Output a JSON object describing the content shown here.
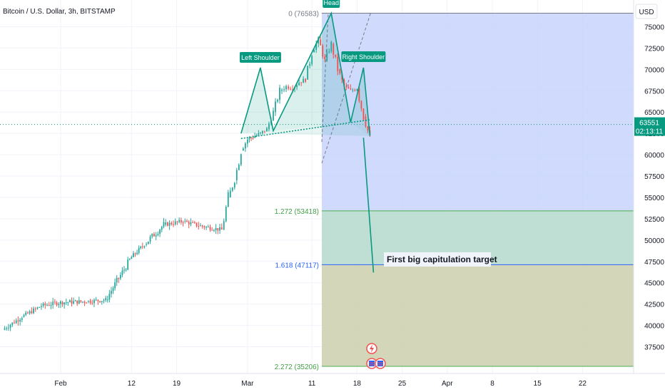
{
  "header": {
    "title": "Bitcoin / U.S. Dollar, 3h, BITSTAMP"
  },
  "price_axis": {
    "currency": "USD",
    "ticks": [
      "75000",
      "72500",
      "70000",
      "67500",
      "65000",
      "62500",
      "60000",
      "57500",
      "55000",
      "52500",
      "50000",
      "47500",
      "45000",
      "42500",
      "40000",
      "37500"
    ]
  },
  "time_axis": {
    "ticks": [
      "Feb",
      "12",
      "19",
      "Mar",
      "11",
      "18",
      "25",
      "Apr",
      "8",
      "15",
      "22"
    ]
  },
  "current_price": {
    "value": "63551",
    "countdown": "02:13:11"
  },
  "fib_levels": [
    {
      "label": "0 (76583)",
      "price": 76583
    },
    {
      "label": "1.272 (53418)",
      "price": 53418
    },
    {
      "label": "1.618 (47117)",
      "price": 47117
    },
    {
      "label": "2.272 (35206)",
      "price": 35206
    }
  ],
  "pattern_labels": {
    "left_shoulder": "Left Shoulder",
    "head": "Head",
    "right_shoulder": "Right Shoulder"
  },
  "annotation": {
    "text": "First big capitulation target"
  },
  "colors": {
    "up": "#26a69a",
    "down": "#ef5350",
    "fib_blue": "#2962ff",
    "pattern": "#089981",
    "zone_blue": "#c7d3fb",
    "zone_teal": "#b9dccf",
    "zone_olive": "#cfd2b3"
  },
  "chart_data": {
    "type": "line",
    "title": "Bitcoin / U.S. Dollar, 3h, BITSTAMP",
    "xlabel": "",
    "ylabel": "USD",
    "ylim": [
      35000,
      77500
    ],
    "x_ticks": [
      "Feb",
      "12",
      "19",
      "Mar",
      "11",
      "18",
      "25",
      "Apr",
      "8",
      "15",
      "22"
    ],
    "series": [
      {
        "name": "",
        "x": [
          "Jan 23",
          "Jan 26",
          "Jan 29",
          "Feb 1",
          "Feb 5",
          "Feb 8",
          "Feb 10",
          "Feb 12",
          "Feb 14",
          "Feb 17",
          "Feb 20",
          "Feb 23",
          "Feb 26",
          "Feb 27",
          "Feb 28",
          "Feb 29",
          "Mar 1",
          "Mar 3",
          "Mar 4",
          "Mar 5",
          "Mar 6",
          "Mar 7",
          "Mar 8",
          "Mar 9",
          "Mar 10",
          "Mar 11",
          "Mar 12",
          "Mar 13",
          "Mar 14",
          "Mar 15",
          "Mar 16",
          "Mar 17",
          "Mar 18",
          "Mar 19",
          "Mar 20"
        ],
        "values": [
          39500,
          41000,
          42300,
          42700,
          42800,
          43000,
          45500,
          48000,
          49500,
          51800,
          52200,
          51600,
          51200,
          55000,
          57000,
          60500,
          61800,
          62500,
          63000,
          65000,
          67500,
          68000,
          67800,
          68500,
          68800,
          72000,
          73500,
          71000,
          73000,
          70000,
          68000,
          67500,
          67800,
          64500,
          62000
        ]
      }
    ],
    "pattern_points": [
      {
        "x": "Feb 29",
        "y": 62500
      },
      {
        "x": "Mar 3",
        "y": 70200
      },
      {
        "x": "Mar 5",
        "y": 62800
      },
      {
        "x": "Mar 14",
        "y": 76583
      },
      {
        "x": "Mar 17",
        "y": 63800
      },
      {
        "x": "Mar 19",
        "y": 70200
      },
      {
        "x": "Mar 20",
        "y": 62200
      }
    ],
    "neckline": [
      {
        "x": "Feb 29",
        "y": 61900
      },
      {
        "x": "Mar 20",
        "y": 64100
      }
    ],
    "projection": [
      {
        "x": "Mar 19",
        "y": 62000
      },
      {
        "x": "Mar 20",
        "y": 46200
      }
    ],
    "current_price": 63551
  }
}
